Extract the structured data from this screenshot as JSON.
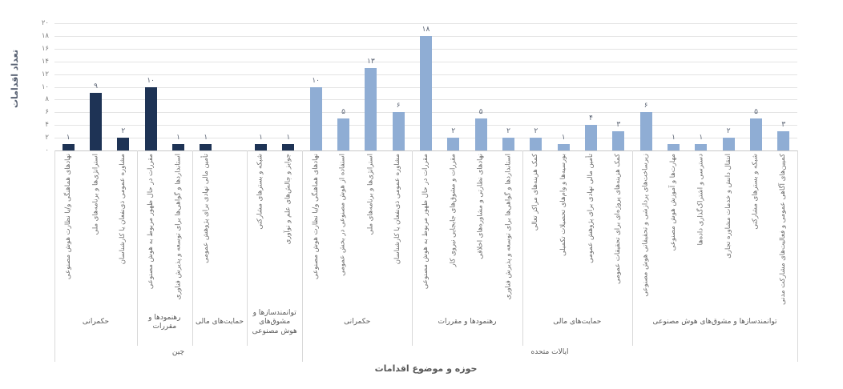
{
  "chart_data": {
    "type": "bar",
    "title": "",
    "ylabel": "تعداد اقدامات",
    "xlabel": "حوزه و موضوع اقدامات",
    "ylim": [
      0,
      20
    ],
    "ytick_step": 2,
    "grid": "horizontal",
    "legend": "none",
    "yticks_fa": [
      "۰",
      "۲",
      "۴",
      "۶",
      "۸",
      "۱۰",
      "۱۲",
      "۱۴",
      "۱۶",
      "۱۸",
      "۲۰"
    ],
    "colors": {
      "china_bar": "#1e3355",
      "us_bar": "#8fadd4",
      "gridline": "#e4e4e4",
      "divider": "#d9d9d9"
    },
    "groups": [
      {
        "country": "چین",
        "color": "#1e3355",
        "sections": [
          {
            "label": "حکمرانی",
            "items": [
              {
                "label": "نهادهای هماهنگی و/یا نظارت هوش مصنوعی",
                "value": 1,
                "value_fa": "۱"
              },
              {
                "label": "استراتژی‌ها و برنامه‌های ملی",
                "value": 9,
                "value_fa": "۹"
              },
              {
                "label": "مشاوره عمومی ذی‌نفعان یا کارشناسان",
                "value": 2,
                "value_fa": "۲"
              }
            ]
          },
          {
            "label": "رهنمودها و مقررات",
            "items": [
              {
                "label": "مقررات در حال ظهور مربوط به هوش مصنوعی",
                "value": 10,
                "value_fa": "۱۰"
              },
              {
                "label": "استانداردها و گواهی‌ها برای توسعه و پذیرش فناوری",
                "value": 1,
                "value_fa": "۱"
              }
            ]
          },
          {
            "label": "حمایت‌های مالی",
            "items": [
              {
                "label": "تأمین مالی نهادی برای پژوهش عمومی",
                "value": 1,
                "value_fa": "۱"
              },
              {
                "label": "",
                "value": null,
                "value_fa": ""
              }
            ]
          },
          {
            "label": "توانمندسازها و مشوق‌های هوش مصنوعی",
            "items": [
              {
                "label": "شبکه و بسترهای مشارکتی",
                "value": 1,
                "value_fa": "۱"
              },
              {
                "label": "جوایز و چالش‌های علم و نوآوری",
                "value": 1,
                "value_fa": "۱"
              }
            ]
          }
        ]
      },
      {
        "country": "ایالات متحده",
        "color": "#8fadd4",
        "sections": [
          {
            "label": "حکمرانی",
            "items": [
              {
                "label": "نهادهای هماهنگی و/یا نظارت هوش مصنوعی",
                "value": 10,
                "value_fa": "۱۰"
              },
              {
                "label": "استفاده از هوش مصنوعی در بخش عمومی",
                "value": 5,
                "value_fa": "۵"
              },
              {
                "label": "استراتژی‌ها و برنامه‌های ملی",
                "value": 13,
                "value_fa": "۱۳"
              },
              {
                "label": "مشاوره عمومی ذی‌نفعان یا کارشناسان",
                "value": 6,
                "value_fa": "۶"
              }
            ]
          },
          {
            "label": "رهنمودها و مقررات",
            "items": [
              {
                "label": "مقررات در حال ظهور مربوط به هوش مصنوعی",
                "value": 18,
                "value_fa": "۱۸"
              },
              {
                "label": "مقررات و مشوق‌های جابجایی نیروی کار",
                "value": 2,
                "value_fa": "۲"
              },
              {
                "label": "نهادهای نظارتی و مشاوره‌های اخلاقی",
                "value": 5,
                "value_fa": "۵"
              },
              {
                "label": "استانداردها و گواهی‌ها برای توسعه و پذیرش فناوری",
                "value": 2,
                "value_fa": "۲"
              }
            ]
          },
          {
            "label": "حمایت‌های مالی",
            "items": [
              {
                "label": "کمک هزینه‌های مراکز تعالی",
                "value": 2,
                "value_fa": "۲"
              },
              {
                "label": "بورسیه‌ها و وام‌های تحصیلات تکمیلی",
                "value": 1,
                "value_fa": "۱"
              },
              {
                "label": "تأمین مالی نهادی برای پژوهش عمومی",
                "value": 4,
                "value_fa": "۴"
              },
              {
                "label": "کمک هزینه‌های پروژه‌ای برای تحقیقات عمومی",
                "value": 3,
                "value_fa": "۳"
              }
            ]
          },
          {
            "label": "توانمندسازها و مشوق‌های هوش مصنوعی",
            "items": [
              {
                "label": "زیرساخت‌های پردازشی و تحقیقاتی هوش مصنوعی",
                "value": 6,
                "value_fa": "۶"
              },
              {
                "label": "مهارت‌ها و آموزش هوش مصنوعی",
                "value": 1,
                "value_fa": "۱"
              },
              {
                "label": "دسترسی و اشتراک‌گذاری داده‌ها",
                "value": 1,
                "value_fa": "۱"
              },
              {
                "label": "انتقال دانش و خدمات مشاوره تجاری",
                "value": 2,
                "value_fa": "۲"
              },
              {
                "label": "شبکه و بسترهای مشارکتی",
                "value": 5,
                "value_fa": "۵"
              },
              {
                "label": "کمپین‌های آگاهی عمومی و فعالیت‌های مشارکت مدنی",
                "value": 3,
                "value_fa": "۳"
              }
            ]
          }
        ]
      }
    ]
  }
}
